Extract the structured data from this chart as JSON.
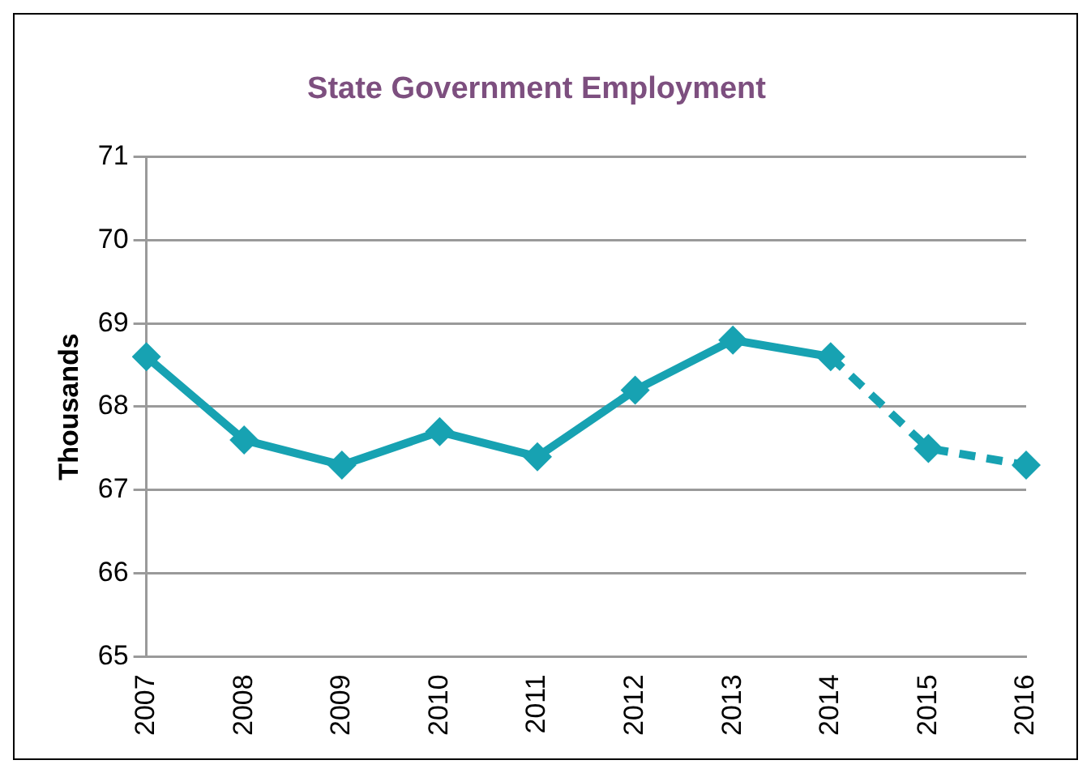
{
  "chart_data": {
    "type": "line",
    "title": "State Government Employment",
    "ylabel": "Thousands",
    "categories": [
      "2007",
      "2008",
      "2009",
      "2010",
      "2011",
      "2012",
      "2013",
      "2014",
      "2015",
      "2016"
    ],
    "series": [
      {
        "color": "#17a2b2",
        "line_style": "solid",
        "values": [
          68.6,
          67.6,
          67.3,
          67.7,
          67.4,
          68.2,
          68.8,
          68.6,
          null,
          null
        ]
      },
      {
        "color": "#17a2b2",
        "line_style": "dashed",
        "values": [
          null,
          null,
          null,
          null,
          null,
          null,
          null,
          68.6,
          67.5,
          67.3
        ]
      }
    ],
    "ylim": [
      65,
      71
    ],
    "yticks": [
      65,
      66,
      67,
      68,
      69,
      70,
      71
    ],
    "grid": "y",
    "marker": "diamond",
    "legend": false
  }
}
